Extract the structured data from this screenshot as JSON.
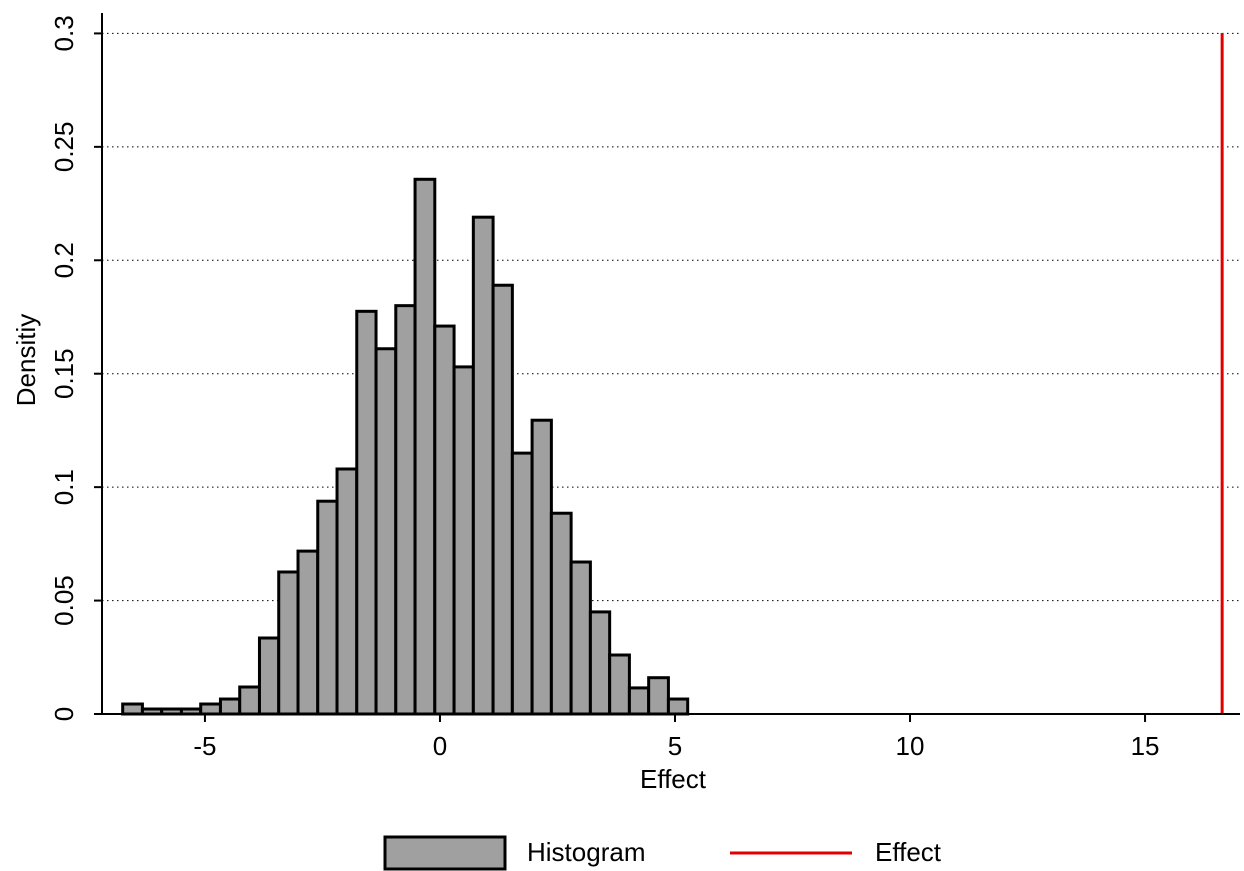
{
  "chart_data": {
    "type": "histogram",
    "xlabel": "Effect",
    "ylabel": "Densitiy",
    "bins": [
      -6.75,
      -6.33,
      -5.92,
      -5.5,
      -5.09,
      -4.67,
      -4.26,
      -3.84,
      -3.43,
      -3.02,
      -2.6,
      -2.19,
      -1.77,
      -1.36,
      -0.94,
      -0.53,
      -0.11,
      0.3,
      0.71,
      1.13,
      1.54,
      1.96,
      2.37,
      2.79,
      3.2,
      3.61,
      4.03,
      4.44,
      4.86,
      5.27
    ],
    "series": [
      {
        "name": "Histogram",
        "color": "#a0a0a0",
        "values": [
          0.0044,
          0.0022,
          0.0022,
          0.0022,
          0.0044,
          0.0066,
          0.0119,
          0.0335,
          0.0626,
          0.0718,
          0.0938,
          0.108,
          0.1775,
          0.161,
          0.18,
          0.2357,
          0.171,
          0.153,
          0.219,
          0.189,
          0.115,
          0.1295,
          0.0885,
          0.067,
          0.045,
          0.026,
          0.0115,
          0.016,
          0.0066
        ]
      }
    ],
    "vline": {
      "name": "Effect",
      "x": 16.64,
      "color": "#e00000"
    },
    "xlim": [
      -7.19,
      17.02
    ],
    "ylim": [
      0,
      0.309
    ],
    "xticks": [
      -5,
      0,
      5,
      10,
      15
    ],
    "yticks": [
      0,
      0.05,
      0.1,
      0.15,
      0.2,
      0.25,
      0.3
    ],
    "grid": true
  }
}
